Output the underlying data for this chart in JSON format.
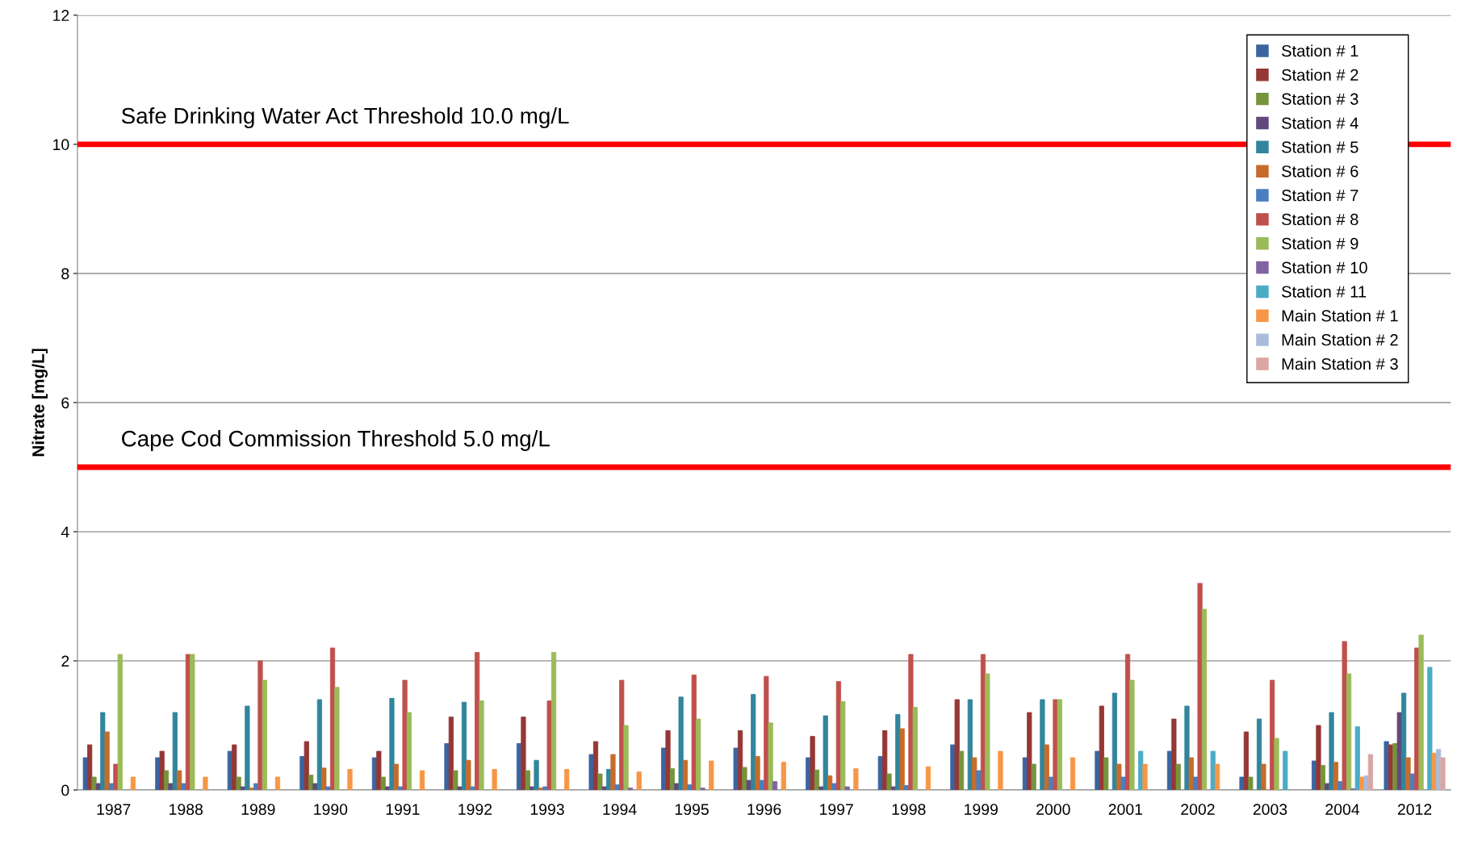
{
  "chart_data": {
    "type": "bar",
    "ylabel": "Nitrate [mg/L]",
    "categories": [
      "1987",
      "1988",
      "1989",
      "1990",
      "1991",
      "1992",
      "1993",
      "1994",
      "1995",
      "1996",
      "1997",
      "1998",
      "1999",
      "2000",
      "2001",
      "2002",
      "2003",
      "2004",
      "2012"
    ],
    "series": [
      {
        "name": "Station # 1",
        "color": "#3b64a0",
        "values": [
          0.5,
          0.5,
          0.6,
          0.52,
          0.5,
          0.72,
          0.72,
          0.55,
          0.65,
          0.65,
          0.5,
          0.52,
          0.7,
          0.5,
          0.6,
          0.6,
          0.2,
          0.45,
          0.75
        ]
      },
      {
        "name": "Station # 2",
        "color": "#953735",
        "values": [
          0.7,
          0.6,
          0.7,
          0.75,
          0.6,
          1.13,
          1.13,
          0.75,
          0.92,
          0.92,
          0.83,
          0.92,
          1.4,
          1.2,
          1.3,
          1.1,
          0.9,
          1.0,
          0.7
        ]
      },
      {
        "name": "Station # 3",
        "color": "#77933c",
        "values": [
          0.2,
          0.3,
          0.2,
          0.23,
          0.2,
          0.3,
          0.3,
          0.25,
          0.33,
          0.35,
          0.31,
          0.25,
          0.6,
          0.4,
          0.5,
          0.4,
          0.2,
          0.38,
          0.72
        ]
      },
      {
        "name": "Station # 4",
        "color": "#604a7b",
        "values": [
          0.1,
          0.1,
          0.05,
          0.1,
          0.05,
          0.05,
          0.05,
          0.05,
          0.1,
          0.15,
          0.05,
          0.05,
          null,
          null,
          null,
          null,
          null,
          0.1,
          1.2
        ]
      },
      {
        "name": "Station # 5",
        "color": "#31859c",
        "values": [
          1.2,
          1.2,
          1.3,
          1.4,
          1.42,
          1.36,
          0.46,
          0.32,
          1.44,
          1.48,
          1.15,
          1.17,
          1.4,
          1.4,
          1.5,
          1.3,
          1.1,
          1.2,
          1.5
        ]
      },
      {
        "name": "Station # 6",
        "color": "#c66c2a",
        "values": [
          0.9,
          0.3,
          0.03,
          0.34,
          0.4,
          0.46,
          0.03,
          0.55,
          0.46,
          0.52,
          0.22,
          0.95,
          0.5,
          0.7,
          0.4,
          0.5,
          0.4,
          0.43,
          0.5
        ]
      },
      {
        "name": "Station # 7",
        "color": "#4a7ec0",
        "values": [
          0.1,
          0.1,
          0.1,
          0.05,
          0.05,
          0.05,
          0.05,
          0.08,
          0.08,
          0.15,
          0.1,
          0.07,
          0.3,
          0.2,
          0.2,
          0.2,
          null,
          0.13,
          0.25
        ]
      },
      {
        "name": "Station # 8",
        "color": "#c0504d",
        "values": [
          0.4,
          2.1,
          2.0,
          2.2,
          1.7,
          2.13,
          1.38,
          1.7,
          1.78,
          1.76,
          1.68,
          2.1,
          2.1,
          1.4,
          2.1,
          3.2,
          1.7,
          2.3,
          2.2
        ]
      },
      {
        "name": "Station # 9",
        "color": "#9bbb59",
        "values": [
          2.1,
          2.1,
          1.7,
          1.59,
          1.2,
          1.38,
          2.13,
          1.0,
          1.1,
          1.04,
          1.37,
          1.28,
          1.8,
          1.4,
          1.7,
          2.8,
          0.8,
          1.8,
          2.4
        ]
      },
      {
        "name": "Station # 10",
        "color": "#8064a2",
        "values": [
          null,
          null,
          null,
          null,
          null,
          null,
          null,
          0.03,
          0.03,
          0.13,
          0.05,
          null,
          null,
          null,
          null,
          null,
          null,
          0.02,
          null
        ]
      },
      {
        "name": "Station # 11",
        "color": "#4bacc6",
        "values": [
          null,
          null,
          null,
          null,
          null,
          null,
          null,
          null,
          null,
          null,
          null,
          null,
          null,
          null,
          0.6,
          0.6,
          0.6,
          0.98,
          1.9
        ]
      },
      {
        "name": "Main Station # 1",
        "color": "#f79646",
        "values": [
          0.2,
          0.2,
          0.2,
          0.32,
          0.3,
          0.32,
          0.32,
          0.28,
          0.45,
          0.43,
          0.33,
          0.36,
          0.6,
          0.5,
          0.4,
          0.4,
          null,
          0.2,
          0.57
        ]
      },
      {
        "name": "Main Station # 2",
        "color": "#a9bcdb",
        "values": [
          null,
          null,
          null,
          null,
          null,
          null,
          null,
          null,
          null,
          null,
          null,
          null,
          null,
          null,
          null,
          null,
          null,
          0.22,
          0.63
        ]
      },
      {
        "name": "Main Station # 3",
        "color": "#d9a6a4",
        "values": [
          null,
          null,
          null,
          null,
          null,
          null,
          null,
          null,
          null,
          null,
          null,
          null,
          null,
          null,
          null,
          null,
          null,
          0.55,
          0.5
        ]
      }
    ],
    "ylim": [
      0,
      12
    ],
    "yticks": [
      0,
      2,
      4,
      6,
      8,
      10,
      12
    ],
    "grid": "y",
    "legend": "top right",
    "ref_lines": [
      {
        "axis": "y",
        "value": 10,
        "label": "Safe Drinking Water Act Threshold 10.0 mg/L",
        "color": "#ff0000"
      },
      {
        "axis": "y",
        "value": 5,
        "label": "Cape Cod Commission Threshold 5.0 mg/L",
        "color": "#ff0000"
      }
    ]
  }
}
